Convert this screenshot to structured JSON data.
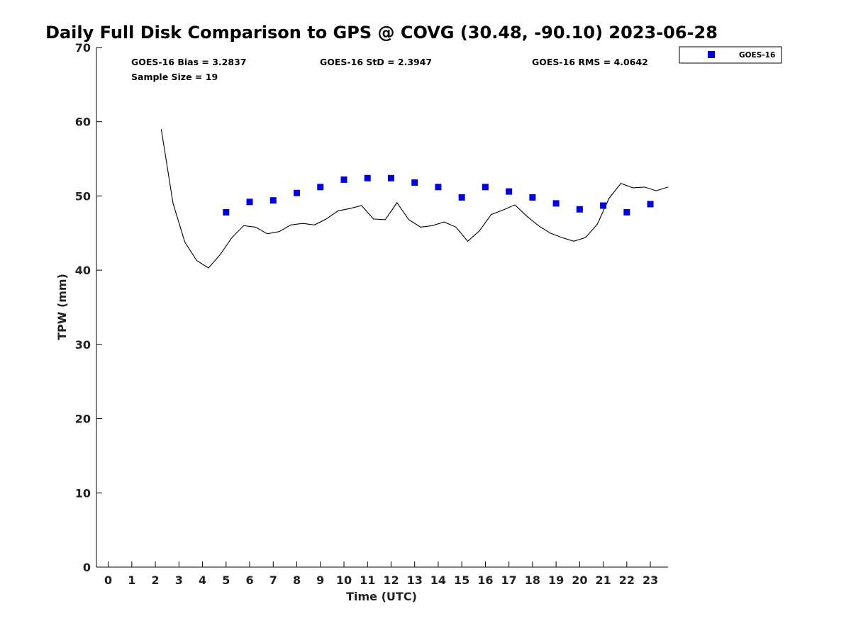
{
  "chart_data": {
    "type": "scatter",
    "title": "Daily Full Disk Comparison to GPS @ COVG (30.48, -90.10) 2023-06-28",
    "xlabel": "Time (UTC)",
    "ylabel": "TPW (mm)",
    "xlim": [
      -0.5,
      23.75
    ],
    "ylim": [
      0,
      70
    ],
    "xticks": [
      0,
      1,
      2,
      3,
      4,
      5,
      6,
      7,
      8,
      9,
      10,
      11,
      12,
      13,
      14,
      15,
      16,
      17,
      18,
      19,
      20,
      21,
      22,
      23
    ],
    "yticks": [
      0,
      10,
      20,
      30,
      40,
      50,
      60,
      70
    ],
    "grid": false,
    "legend_position": "top-right",
    "stats": {
      "bias": "GOES-16 Bias = 3.2837",
      "std": "GOES-16 StD = 2.3947",
      "rms": "GOES-16 RMS = 4.0642",
      "sample_size": "Sample Size = 19"
    },
    "series": [
      {
        "name": "GOES-16",
        "kind": "scatter",
        "marker": "square",
        "color": "#0000dd",
        "x": [
          5,
          6,
          7,
          8,
          9,
          10,
          11,
          12,
          13,
          14,
          15,
          16,
          17,
          18,
          19,
          20,
          21,
          22,
          23
        ],
        "y": [
          47.8,
          49.2,
          49.4,
          50.4,
          51.2,
          52.2,
          52.4,
          52.4,
          51.8,
          51.2,
          49.8,
          51.2,
          50.6,
          49.8,
          49.0,
          48.2,
          48.7,
          47.8,
          48.9
        ]
      },
      {
        "kind": "line",
        "color": "#000000",
        "x": [
          2.25,
          2.75,
          3.25,
          3.75,
          4.25,
          4.75,
          5.25,
          5.75,
          6.25,
          6.75,
          7.25,
          7.75,
          8.25,
          8.75,
          9.25,
          9.75,
          10.25,
          10.75,
          11.25,
          11.75,
          12.25,
          12.75,
          13.25,
          13.75,
          14.25,
          14.75,
          15.25,
          15.75,
          16.25,
          16.75,
          17.25,
          17.75,
          18.25,
          18.75,
          19.25,
          19.75,
          20.25,
          20.75,
          21.25,
          21.75,
          22.25,
          22.75,
          23.25,
          23.75
        ],
        "y": [
          59.0,
          49.0,
          43.8,
          41.3,
          40.3,
          42.1,
          44.4,
          46.0,
          45.8,
          44.9,
          45.2,
          46.1,
          46.3,
          46.1,
          46.9,
          48.0,
          48.3,
          48.7,
          46.9,
          46.8,
          49.1,
          46.8,
          45.8,
          46.0,
          46.5,
          45.8,
          43.9,
          45.3,
          47.5,
          48.1,
          48.8,
          47.3,
          46.0,
          45.0,
          44.4,
          43.9,
          44.4,
          46.2,
          49.7,
          51.7,
          51.1,
          51.2,
          50.7,
          51.2
        ]
      }
    ]
  }
}
